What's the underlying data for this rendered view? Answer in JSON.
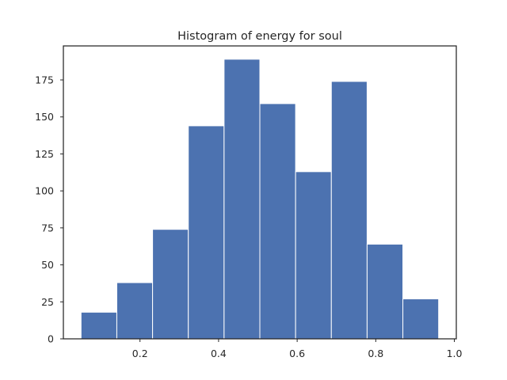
{
  "chart_data": {
    "type": "bar",
    "title": "Histogram of energy for soul",
    "xlabel": "",
    "ylabel": "",
    "bin_edges": [
      0.05,
      0.141,
      0.232,
      0.323,
      0.414,
      0.505,
      0.596,
      0.687,
      0.778,
      0.869,
      0.96
    ],
    "counts": [
      18,
      38,
      74,
      144,
      189,
      159,
      113,
      174,
      64,
      27
    ],
    "xlim": [
      0.005,
      1.005
    ],
    "ylim": [
      0,
      198
    ],
    "x_ticks": [
      0.2,
      0.4,
      0.6,
      0.8,
      1.0
    ],
    "x_tick_labels": [
      "0.2",
      "0.4",
      "0.6",
      "0.8",
      "1.0"
    ],
    "y_ticks": [
      0,
      25,
      50,
      75,
      100,
      125,
      150,
      175
    ],
    "y_tick_labels": [
      "0",
      "25",
      "50",
      "75",
      "100",
      "125",
      "150",
      "175"
    ],
    "bar_color": "#4c72b0",
    "grid": false
  }
}
